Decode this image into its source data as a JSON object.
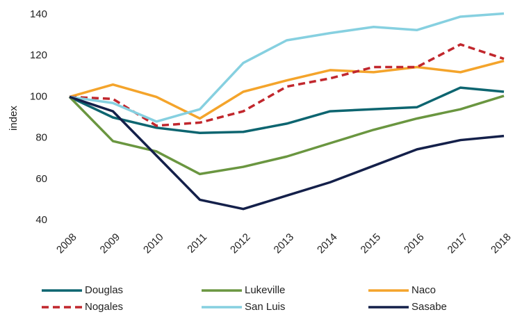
{
  "chart_data": {
    "type": "line",
    "y_label": "index",
    "categories": [
      "2008",
      "2009",
      "2010",
      "2011",
      "2012",
      "2013",
      "2014",
      "2015",
      "2016",
      "2017",
      "2018"
    ],
    "ylim": [
      40,
      140
    ],
    "yticks": [
      40,
      60,
      80,
      100,
      120,
      140
    ],
    "grid": false,
    "legend": "bottom",
    "series": [
      {
        "name": "Douglas",
        "color": "#0d6570",
        "style": "solid",
        "values": [
          100,
          90,
          85,
          82.5,
          83,
          87,
          93,
          94,
          95,
          104.5,
          102.5
        ]
      },
      {
        "name": "Lukeville",
        "color": "#6a9640",
        "style": "solid",
        "values": [
          100,
          78.5,
          73.5,
          62.5,
          66,
          71,
          77.5,
          84,
          89.5,
          94,
          100.5
        ]
      },
      {
        "name": "Naco",
        "color": "#f4a42b",
        "style": "solid",
        "values": [
          100,
          106,
          100,
          89.5,
          102.5,
          108,
          113,
          112,
          114.5,
          112,
          117.5
        ]
      },
      {
        "name": "Nogales",
        "color": "#c1272d",
        "style": "dashed",
        "values": [
          100,
          99,
          86,
          87.5,
          93,
          105,
          109,
          114.5,
          114.5,
          125.5,
          118.5
        ]
      },
      {
        "name": "San Luis",
        "color": "#86d0e0",
        "style": "solid",
        "values": [
          100,
          97,
          88,
          94,
          116.5,
          127.5,
          131,
          134,
          132.5,
          139,
          140.5
        ]
      },
      {
        "name": "Sasabe",
        "color": "#14204a",
        "style": "solid",
        "values": [
          100,
          93,
          71.5,
          50,
          45.5,
          52,
          58.5,
          66.5,
          74.5,
          79,
          81
        ]
      }
    ]
  }
}
